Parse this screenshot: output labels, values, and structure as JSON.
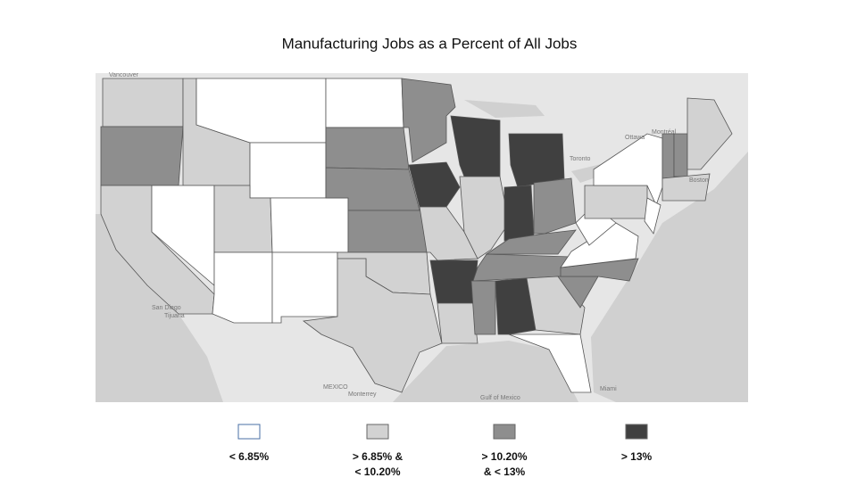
{
  "title": "Manufacturing Jobs as a Percent of All Jobs",
  "legend": [
    {
      "label_lines": [
        "< 6.85%"
      ],
      "color": "#ffffff"
    },
    {
      "label_lines": [
        "> 6.85% &",
        "< 10.20%"
      ],
      "color": "#d2d2d2"
    },
    {
      "label_lines": [
        "> 10.20%",
        "& < 13%"
      ],
      "color": "#8e8e8e"
    },
    {
      "label_lines": [
        "> 13%"
      ],
      "color": "#404040"
    }
  ],
  "map_labels": [
    "Vancouver",
    "Ottawa",
    "Montréal",
    "Toronto",
    "Boston",
    "San Diego",
    "Tijuana",
    "MEXICO",
    "Monterrey",
    "Gulf of Mexico",
    "Miami"
  ]
}
